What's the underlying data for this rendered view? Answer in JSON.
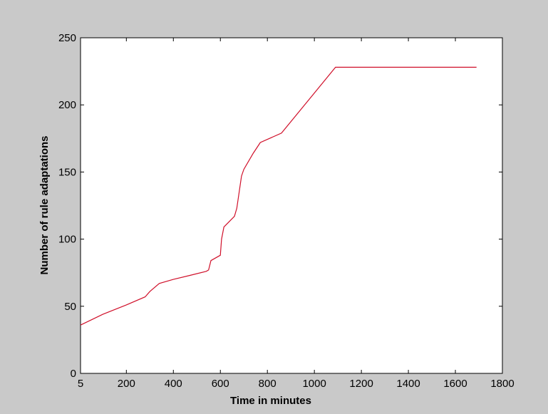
{
  "chart_data": {
    "type": "line",
    "title": "",
    "xlabel": "Time in minutes",
    "ylabel": "Number of rule adaptations",
    "xlim": [
      5,
      1800
    ],
    "ylim": [
      0,
      250
    ],
    "x_ticks": [
      5,
      200,
      400,
      600,
      800,
      1000,
      1200,
      1400,
      1600,
      1800
    ],
    "x_tick_labels": [
      "5",
      "200",
      "400",
      "600",
      "800",
      "1000",
      "1200",
      "1400",
      "1600",
      "1800"
    ],
    "y_ticks": [
      0,
      50,
      100,
      150,
      200,
      250
    ],
    "y_tick_labels": [
      "0",
      "50",
      "100",
      "150",
      "200",
      "250"
    ],
    "grid": false,
    "legend": "none",
    "series": [
      {
        "color": "#d0102a",
        "x": [
          5,
          100,
          200,
          280,
          300,
          340,
          400,
          470,
          540,
          550,
          560,
          600,
          605,
          615,
          660,
          670,
          680,
          690,
          700,
          740,
          770,
          860,
          1090,
          1690
        ],
        "y": [
          36,
          44,
          51,
          57,
          61,
          67,
          70,
          73,
          76,
          77,
          84,
          88,
          100,
          109,
          117,
          123,
          135,
          147,
          152,
          164,
          172,
          179,
          228,
          228
        ]
      }
    ]
  }
}
